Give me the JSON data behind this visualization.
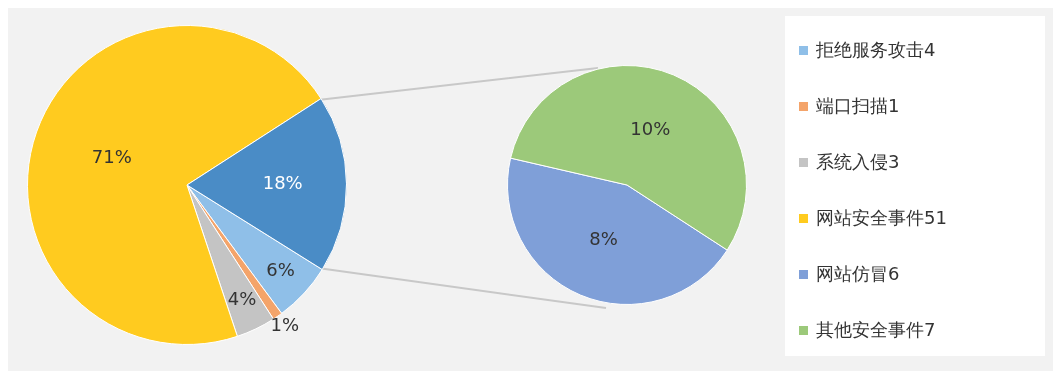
{
  "chart_data": [
    {
      "type": "pie",
      "categories": [
        "拒绝服务攻击4",
        "端口扫描1",
        "系统入侵3",
        "网站安全事件51",
        null
      ],
      "values": [
        6,
        1,
        4,
        71,
        18
      ],
      "colors": [
        "#8fbfe8",
        "#f4a46a",
        "#c4c4c4",
        "#ffcb1f",
        "#4a8cc6"
      ],
      "value_labels": [
        "6%",
        "1%",
        "4%",
        "71%",
        "18%"
      ],
      "legend": "right"
    },
    {
      "type": "pie",
      "categories": [
        "网站仿冒6",
        "其他安全事件7"
      ],
      "values": [
        8,
        10
      ],
      "colors": [
        "#7f9fd8",
        "#9cc97a"
      ],
      "value_labels": [
        "8%",
        "10%"
      ],
      "legend": "right"
    }
  ]
}
